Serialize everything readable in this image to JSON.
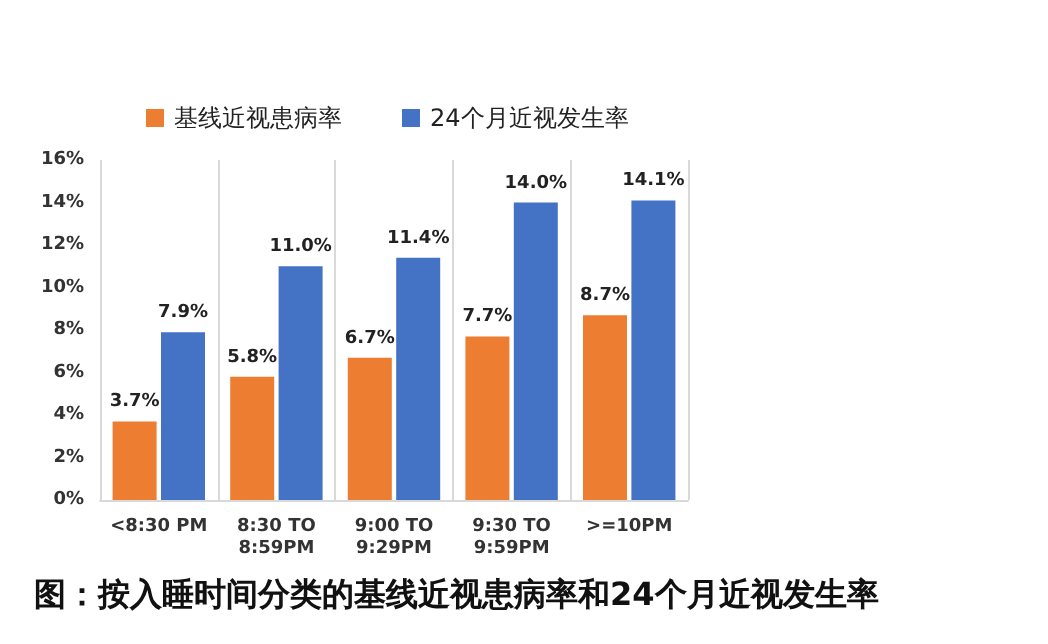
{
  "chart_data": {
    "type": "bar",
    "categories": [
      "<8:30 PM",
      "8:30 TO\n8:59PM",
      "9:00 TO\n9:29PM",
      "9:30 TO\n9:59PM",
      ">=10PM"
    ],
    "series": [
      {
        "name": "基线近视患病率",
        "color": "#ed7d31",
        "values": [
          3.7,
          5.8,
          6.7,
          7.7,
          8.7
        ],
        "value_labels": [
          "3.7%",
          "5.8%",
          "6.7%",
          "7.7%",
          "8.7%"
        ]
      },
      {
        "name": "24个月近视发生率",
        "color": "#4472c4",
        "values": [
          7.9,
          11.0,
          11.4,
          14.0,
          14.1
        ],
        "value_labels": [
          "7.9%",
          "11.0%",
          "11.4%",
          "14.0%",
          "14.1%"
        ]
      }
    ],
    "ylim": [
      0,
      16
    ],
    "yticks": [
      {
        "value": 0,
        "label": "0%"
      },
      {
        "value": 2,
        "label": "2%"
      },
      {
        "value": 4,
        "label": "4%"
      },
      {
        "value": 6,
        "label": "6%"
      },
      {
        "value": 8,
        "label": "8%"
      },
      {
        "value": 10,
        "label": "10%"
      },
      {
        "value": 12,
        "label": "12%"
      },
      {
        "value": 14,
        "label": "14%"
      },
      {
        "value": 16,
        "label": "16%"
      }
    ],
    "grid": "x",
    "legend": "top left",
    "annotations": [
      "图：按入睡时间分类的基线近视患病率和24个月近视发生率"
    ]
  }
}
